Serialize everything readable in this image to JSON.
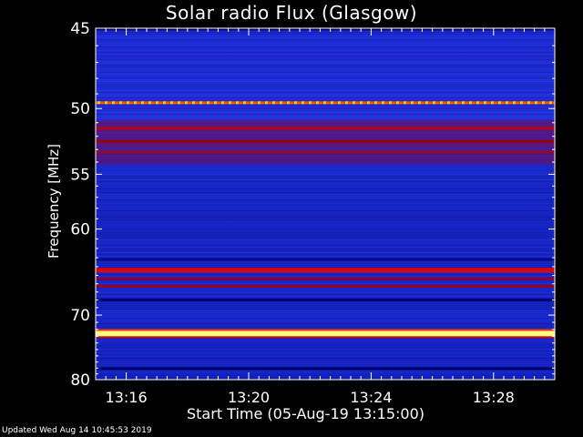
{
  "chart_data": {
    "type": "heatmap",
    "title": "Solar radio Flux (Glasgow)",
    "xlabel": "Start Time (05-Aug-19 13:15:00)",
    "ylabel": "Frequency [MHz]",
    "x_ticks": [
      "13:16",
      "13:20",
      "13:24",
      "13:28"
    ],
    "x_tick_minutes": [
      1,
      5,
      9,
      13
    ],
    "xlim_minutes": [
      0,
      15
    ],
    "y_ticks": [
      45,
      50,
      55,
      60,
      70,
      80
    ],
    "ylim": [
      45,
      80
    ],
    "y_scale": "reciprocal",
    "colormap": "blue-red-yellow",
    "background_color": "#1a22c8",
    "bands": [
      {
        "freq": 45.05,
        "color": "#000066"
      },
      {
        "freq": 49.6,
        "color": "#ff5000"
      },
      {
        "freq": 51.4,
        "color": "#c00000"
      },
      {
        "freq": 52.4,
        "color": "#a00000"
      },
      {
        "freq": 53.2,
        "color": "#900a30"
      },
      {
        "freq": 63.2,
        "color": "#0a0a80"
      },
      {
        "freq": 64.4,
        "color": "#e00000"
      },
      {
        "freq": 65.4,
        "color": "#900030"
      },
      {
        "freq": 66.3,
        "color": "#a00010"
      },
      {
        "freq": 68.0,
        "color": "#000070"
      },
      {
        "freq": 72.6,
        "color": "#ffff80"
      },
      {
        "freq": 78.1,
        "color": "#000066"
      }
    ]
  },
  "footer": "Updated Wed Aug 14 10:45:53 2019"
}
